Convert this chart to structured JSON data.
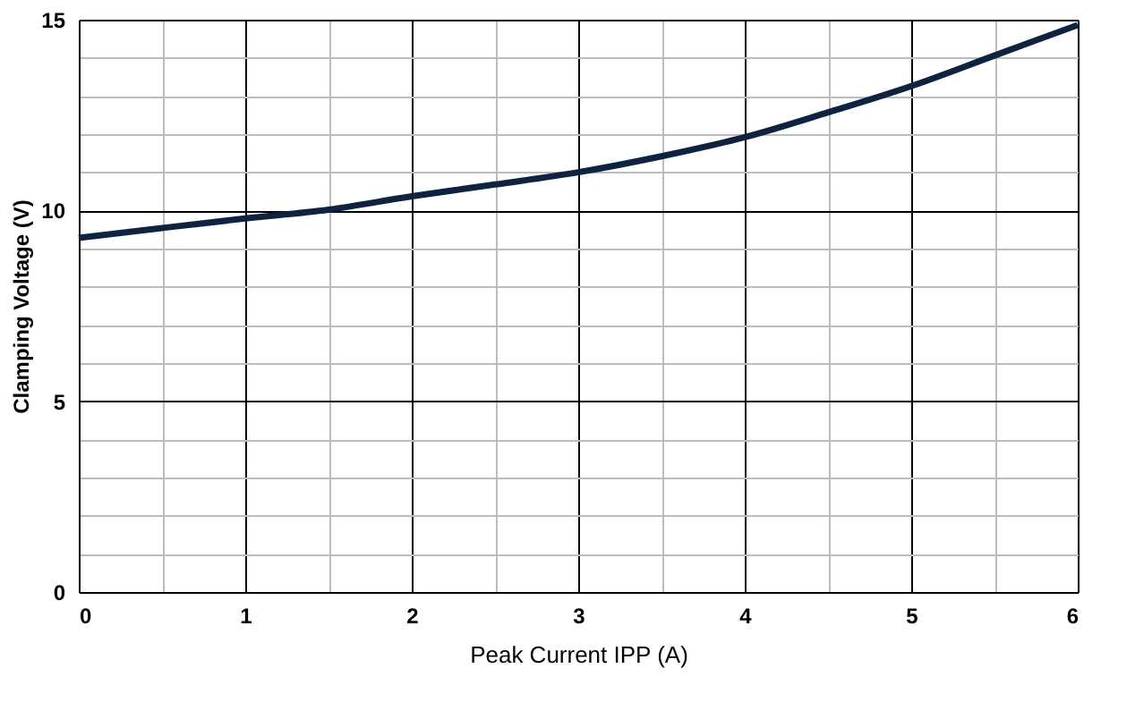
{
  "chart_data": {
    "type": "line",
    "xlabel": "Peak Current IPP (A)",
    "ylabel": "Clamping Voltage (V)",
    "x": [
      0,
      0.5,
      1,
      1.5,
      2,
      2.5,
      3,
      3.5,
      4,
      4.5,
      5,
      5.5,
      6
    ],
    "series": [
      {
        "color": "#0f2341",
        "values": [
          9.28,
          9.54,
          9.79,
          10.02,
          10.37,
          10.68,
          11.0,
          11.42,
          11.92,
          12.57,
          13.26,
          14.06,
          14.86
        ]
      }
    ],
    "xlim": [
      0,
      6
    ],
    "ylim": [
      0,
      15
    ],
    "xticks": [
      0,
      {
        "value": 0.5,
        "label": null
      },
      1,
      {
        "value": 1.5,
        "label": null
      },
      2,
      {
        "value": 2.5,
        "label": null
      },
      3,
      {
        "value": 3.5,
        "label": null
      },
      4,
      {
        "value": 4.5,
        "label": null
      },
      5,
      {
        "value": 5.5,
        "label": null
      },
      6
    ],
    "yticks": [
      0,
      {
        "value": 1,
        "label": null
      },
      {
        "value": 2,
        "label": null
      },
      {
        "value": 3,
        "label": null
      },
      {
        "value": 4,
        "label": null
      },
      5,
      {
        "value": 6,
        "label": null
      },
      {
        "value": 7,
        "label": null
      },
      {
        "value": 8,
        "label": null
      },
      {
        "value": 9,
        "label": null
      },
      10,
      {
        "value": 11,
        "label": null
      },
      {
        "value": 12,
        "label": null
      },
      {
        "value": 13,
        "label": null
      },
      {
        "value": 14,
        "label": null
      },
      15
    ],
    "grid": true,
    "marker": "none",
    "line_style": "solid",
    "legend": false
  }
}
